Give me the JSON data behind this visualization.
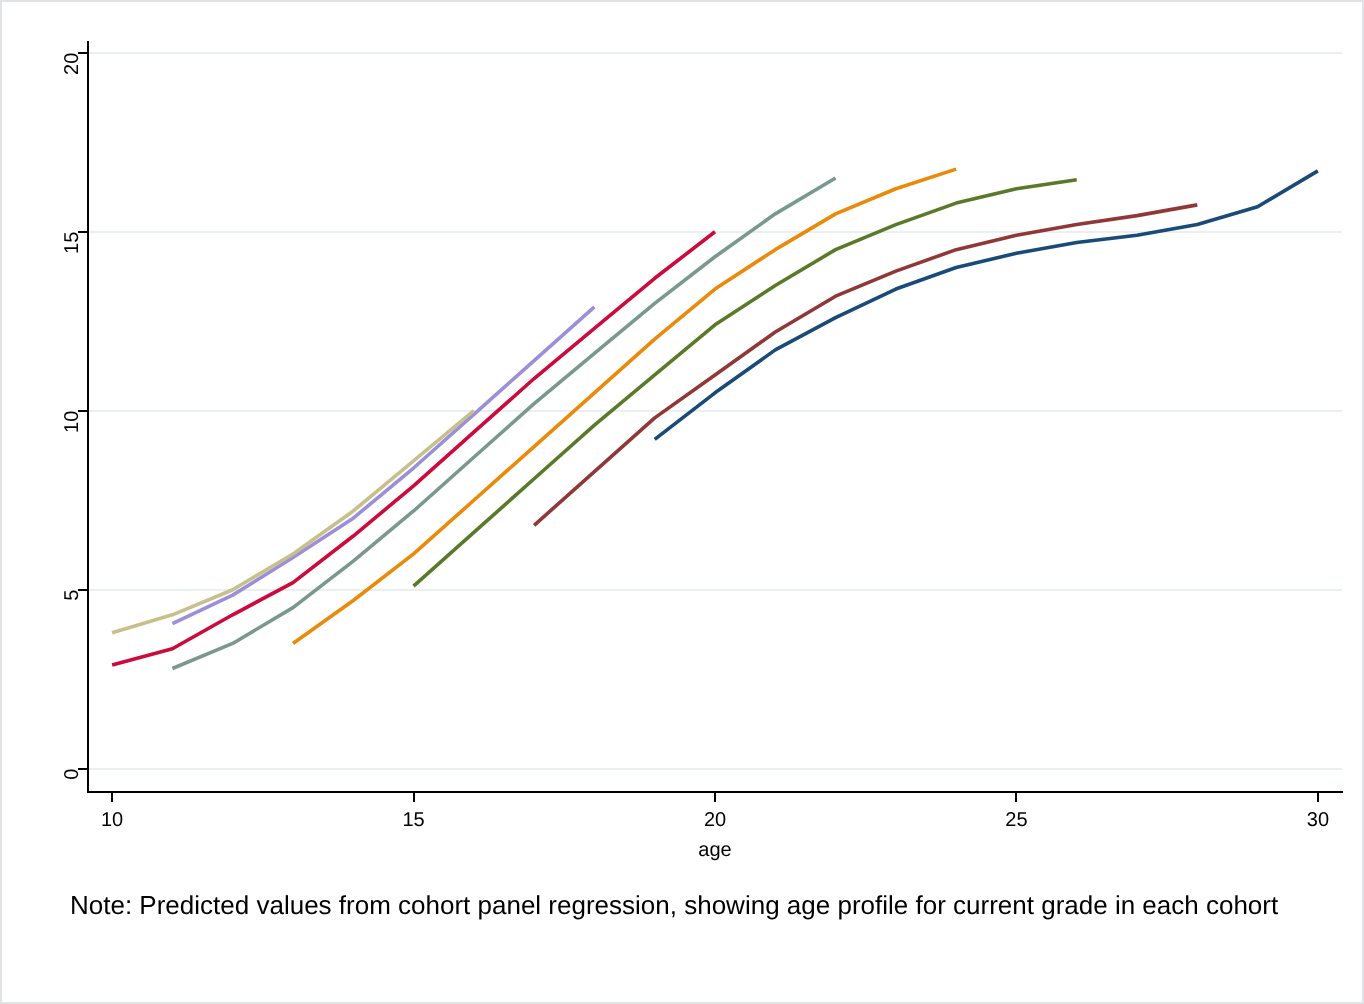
{
  "chart_data": {
    "type": "line",
    "xlabel": "age",
    "annotations": [
      "Note: Predicted values from cohort panel regression, showing age profile for current grade in each cohort"
    ],
    "xlim": [
      9.6,
      30.4
    ],
    "xticks": [
      10,
      15,
      20,
      25,
      30
    ],
    "ylim": [
      -0.65,
      20.3
    ],
    "yticks": [
      0,
      5,
      10,
      15,
      20
    ],
    "grid": "y",
    "legend": false,
    "marker": "none",
    "line_style": "solid",
    "series": [
      {
        "color": "#c8c08a",
        "x": [
          10,
          11,
          12,
          13,
          14,
          15,
          16
        ],
        "values": [
          3.8,
          4.3,
          5.0,
          6.0,
          7.2,
          8.6,
          10.0
        ]
      },
      {
        "color": "#9a8fd8",
        "x": [
          11,
          12,
          13,
          14,
          15,
          16,
          17,
          18
        ],
        "values": [
          4.05,
          4.85,
          5.9,
          7.0,
          8.4,
          9.9,
          11.4,
          12.9
        ]
      },
      {
        "color": "#cc0a3c",
        "x": [
          10,
          11,
          12,
          13,
          14,
          15,
          16,
          17,
          18,
          19,
          20
        ],
        "values": [
          2.9,
          3.35,
          4.3,
          5.2,
          6.5,
          7.9,
          9.4,
          10.9,
          12.3,
          13.7,
          15.0
        ]
      },
      {
        "color": "#7a998e",
        "x": [
          11,
          12,
          13,
          14,
          15,
          16,
          17,
          18,
          19,
          20,
          21,
          22
        ],
        "values": [
          2.8,
          3.5,
          4.5,
          5.8,
          7.2,
          8.7,
          10.2,
          11.6,
          13.0,
          14.3,
          15.5,
          16.5
        ]
      },
      {
        "color": "#ea8a0a",
        "x": [
          13,
          14,
          15,
          16,
          17,
          18,
          19,
          20,
          21,
          22,
          23,
          24
        ],
        "values": [
          3.5,
          4.7,
          6.0,
          7.5,
          9.0,
          10.5,
          12.0,
          13.4,
          14.5,
          15.5,
          16.2,
          16.75
        ]
      },
      {
        "color": "#5a7a2a",
        "x": [
          15,
          16,
          17,
          18,
          19,
          20,
          21,
          22,
          23,
          24,
          25,
          26
        ],
        "values": [
          5.1,
          6.6,
          8.1,
          9.6,
          11.0,
          12.4,
          13.5,
          14.5,
          15.2,
          15.8,
          16.2,
          16.45
        ]
      },
      {
        "color": "#903838",
        "x": [
          17,
          18,
          19,
          20,
          21,
          22,
          23,
          24,
          25,
          26,
          27,
          28
        ],
        "values": [
          6.8,
          8.3,
          9.8,
          11.0,
          12.2,
          13.2,
          13.9,
          14.5,
          14.9,
          15.2,
          15.45,
          15.75
        ]
      },
      {
        "color": "#1a4a78",
        "x": [
          19,
          20,
          21,
          22,
          23,
          24,
          25,
          26,
          27,
          28,
          29,
          30
        ],
        "values": [
          9.2,
          10.5,
          11.7,
          12.6,
          13.4,
          14.0,
          14.4,
          14.7,
          14.9,
          15.2,
          15.7,
          16.7
        ]
      }
    ]
  }
}
